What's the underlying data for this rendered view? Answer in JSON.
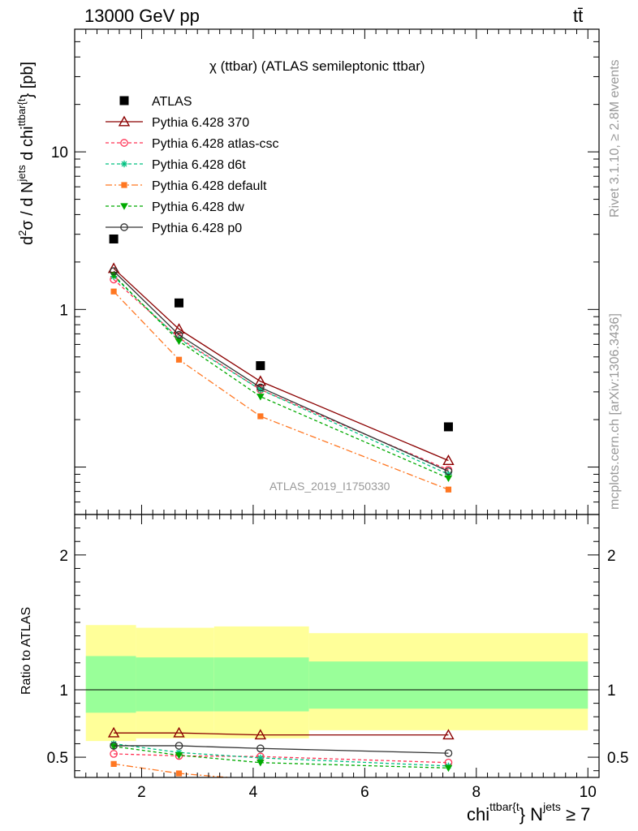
{
  "header": {
    "left": "13000 GeV pp",
    "right": "tt̄"
  },
  "side_texts": {
    "rivet": "Rivet 3.1.10, ≥ 2.8M events",
    "source": "mcplots.cern.ch [arXiv:1306.3436]"
  },
  "analysis_tag": "ATLAS_2019_I1750330",
  "chart_data": [
    {
      "type": "line",
      "panel": "main",
      "title": "χ (ttbar) (ATLAS semileptonic ttbar)",
      "ylabel_parts": {
        "d2": "d",
        "sup2": "2",
        "sigma": "σ / d N",
        "jets": "jets",
        "dchi": " d chi",
        "ttbar": "ttbar{t",
        "close": "} [pb]"
      },
      "y_scale": "log",
      "ylim": [
        0.05,
        60
      ],
      "xlim": [
        0.8,
        10.2
      ],
      "y_tick_labels": [
        "1",
        "10"
      ],
      "legend_position": "top-left",
      "data": {
        "ATLAS": {
          "x": [
            1.5,
            2.67,
            4.13,
            7.5
          ],
          "y": [
            2.8,
            1.1,
            0.44,
            0.18
          ]
        },
        "series": [
          {
            "name": "Pythia 6.428 370",
            "color": "#8b0000",
            "marker": "triangle-open",
            "dash": "",
            "x": [
              1.5,
              2.67,
              4.13,
              7.5
            ],
            "y": [
              1.82,
              0.75,
              0.35,
              0.11
            ]
          },
          {
            "name": "Pythia 6.428 atlas-csc",
            "color": "#ff3355",
            "marker": "circle-open",
            "dash": "4,3",
            "x": [
              1.5,
              2.67,
              4.13,
              7.5
            ],
            "y": [
              1.55,
              0.66,
              0.31,
              0.096
            ]
          },
          {
            "name": "Pythia 6.428 d6t",
            "color": "#00c080",
            "marker": "star",
            "dash": "4,3",
            "x": [
              1.5,
              2.67,
              4.13,
              7.5
            ],
            "y": [
              1.62,
              0.65,
              0.31,
              0.09
            ]
          },
          {
            "name": "Pythia 6.428 default",
            "color": "#ff7722",
            "marker": "square",
            "dash": "8,3,2,3",
            "x": [
              1.5,
              2.67,
              4.13,
              7.5
            ],
            "y": [
              1.3,
              0.48,
              0.21,
              0.072
            ]
          },
          {
            "name": "Pythia 6.428 dw",
            "color": "#00aa00",
            "marker": "triangle-down",
            "dash": "4,3",
            "x": [
              1.5,
              2.67,
              4.13,
              7.5
            ],
            "y": [
              1.65,
              0.63,
              0.28,
              0.085
            ]
          },
          {
            "name": "Pythia 6.428 p0",
            "color": "#333333",
            "marker": "circle-open",
            "dash": "",
            "x": [
              1.5,
              2.67,
              4.13,
              7.5
            ],
            "y": [
              1.75,
              0.69,
              0.32,
              0.094
            ]
          }
        ]
      }
    },
    {
      "type": "line",
      "panel": "ratio",
      "ylabel": "Ratio to ATLAS",
      "ylim": [
        0.35,
        2.3
      ],
      "xlim": [
        0.8,
        10.2
      ],
      "x_tick_labels": [
        "2",
        "4",
        "6",
        "8",
        "10"
      ],
      "y_tick_labels": [
        "0.5",
        "1",
        "2"
      ],
      "xlabel_parts": {
        "chi": "chi",
        "ttbar": "ttbar{t",
        "close": "} N",
        "jets": "jets",
        "cond": " ≥ 7"
      },
      "bands": [
        {
          "x0": 1.0,
          "x1": 1.9,
          "inner": [
            0.83,
            1.25
          ],
          "outer": [
            0.62,
            1.48
          ]
        },
        {
          "x0": 1.9,
          "x1": 3.3,
          "inner": [
            0.84,
            1.24
          ],
          "outer": [
            0.64,
            1.46
          ]
        },
        {
          "x0": 3.3,
          "x1": 5.0,
          "inner": [
            0.84,
            1.24
          ],
          "outer": [
            0.64,
            1.47
          ]
        },
        {
          "x0": 5.0,
          "x1": 10.0,
          "inner": [
            0.86,
            1.21
          ],
          "outer": [
            0.7,
            1.42
          ]
        }
      ],
      "band_colors": {
        "inner": "#99ff99",
        "outer": "#ffff99"
      },
      "series": [
        {
          "name": "Pythia 6.428 370",
          "x": [
            1.5,
            2.67,
            4.13,
            7.5
          ],
          "y": [
            0.68,
            0.68,
            0.665,
            0.665
          ]
        },
        {
          "name": "Pythia 6.428 atlas-csc",
          "x": [
            1.5,
            2.67,
            4.13,
            7.5
          ],
          "y": [
            0.525,
            0.51,
            0.505,
            0.46
          ]
        },
        {
          "name": "Pythia 6.428 d6t",
          "x": [
            1.5,
            2.67,
            4.13,
            7.5
          ],
          "y": [
            0.6,
            0.535,
            0.495,
            0.435
          ]
        },
        {
          "name": "Pythia 6.428 default",
          "x": [
            1.5,
            2.67,
            4.13
          ],
          "y": [
            0.45,
            0.38,
            0.33
          ]
        },
        {
          "name": "Pythia 6.428 dw",
          "x": [
            1.5,
            2.67,
            4.13,
            7.5
          ],
          "y": [
            0.58,
            0.515,
            0.46,
            0.42
          ]
        },
        {
          "name": "Pythia 6.428 p0",
          "x": [
            1.5,
            2.67,
            4.13,
            7.5
          ],
          "y": [
            0.585,
            0.585,
            0.565,
            0.53
          ]
        }
      ]
    }
  ]
}
